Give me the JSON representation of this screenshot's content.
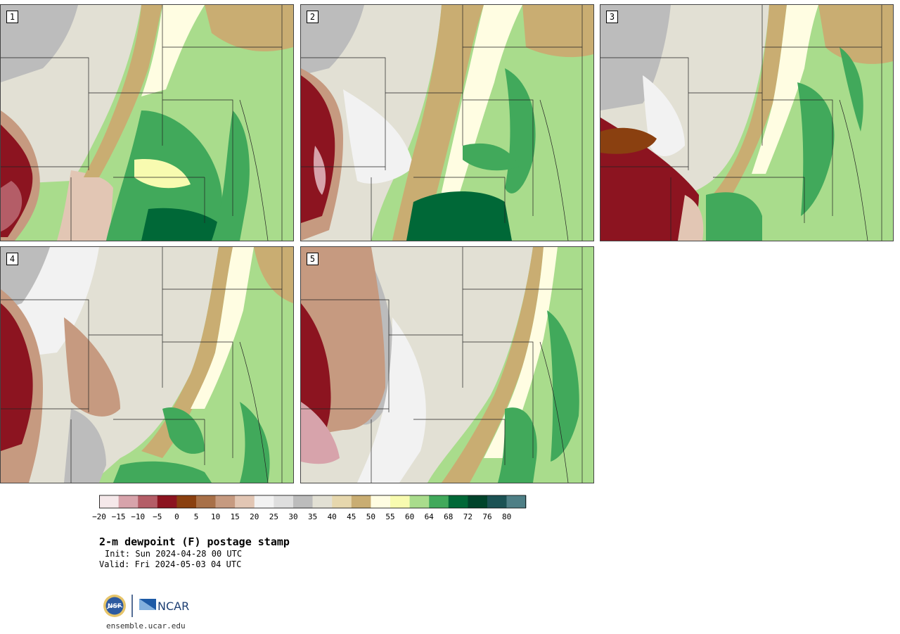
{
  "panels": [
    {
      "label": "1"
    },
    {
      "label": "2"
    },
    {
      "label": "3"
    },
    {
      "label": "4"
    },
    {
      "label": "5"
    }
  ],
  "colorbar": {
    "colors": [
      "#f5e8ea",
      "#d7a3ab",
      "#b45d67",
      "#8c1420",
      "#8a4010",
      "#a87048",
      "#c69a80",
      "#e2c6b4",
      "#f2f2f2",
      "#dedede",
      "#bcbcbc",
      "#e2e0d4",
      "#e6d7ad",
      "#c9ad72",
      "#fffde2",
      "#f8fbb0",
      "#a9dc8c",
      "#41a95b",
      "#006837",
      "#00442b",
      "#1b5254",
      "#4e7f86"
    ],
    "ticks": [
      "−20",
      "−15",
      "−10",
      "−5",
      "0",
      "5",
      "10",
      "15",
      "20",
      "25",
      "30",
      "35",
      "40",
      "45",
      "50",
      "55",
      "60",
      "64",
      "68",
      "72",
      "76",
      "80"
    ]
  },
  "title": "2-m dewpoint (F) postage stamp",
  "init": "Init: Sun 2024-04-28 00 UTC",
  "valid": "Valid: Fri 2024-05-03 04 UTC",
  "logo": {
    "nsf": "NSF",
    "ncar": "NCAR"
  },
  "url": "ensemble.ucar.edu"
}
